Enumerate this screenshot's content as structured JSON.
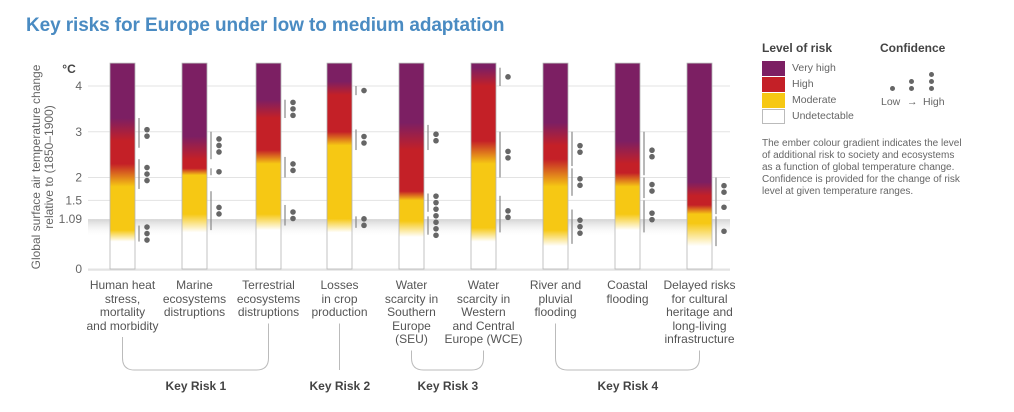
{
  "title": "Key risks for Europe under low to medium adaptation",
  "legend": {
    "level_title": "Level of risk",
    "levels": [
      {
        "label": "Very high",
        "color": "#7c1f63"
      },
      {
        "label": "High",
        "color": "#c42027"
      },
      {
        "label": "Moderate",
        "color": "#f6c814"
      },
      {
        "label": "Undetectable",
        "color": "#ffffff"
      }
    ],
    "confidence_title": "Confidence",
    "confidence_low": "Low",
    "confidence_arrow": "→",
    "confidence_high": "High",
    "description": "The ember colour gradient indicates the level of additional risk to society and ecosystems as a function of global temperature change. Confidence is provided for the change of risk level at given temperature ranges."
  },
  "chart_data": {
    "type": "ember",
    "title": "Key risks for Europe under low to medium adaptation",
    "ylabel": "Global surface air temperature change relative to (1850–1900)",
    "yunit": "°C",
    "ylim": [
      0,
      4.5
    ],
    "yticks": [
      0,
      1.09,
      1.5,
      2,
      3,
      4
    ],
    "ytick_labels": [
      "0",
      "1.09",
      "1.5",
      "2",
      "3",
      "4"
    ],
    "current_warming_band": [
      0.7,
      1.09
    ],
    "grid": true,
    "colors": {
      "undetectable": "#ffffff",
      "moderate": "#f6c814",
      "high": "#c42027",
      "very_high": "#7c1f63"
    },
    "embers": [
      {
        "name": "Human heat stress, mortality and morbidity",
        "transitions": {
          "undetectable_to_moderate": [
            0.6,
            0.85
          ],
          "moderate_to_high": [
            1.8,
            2.3
          ],
          "high_to_very_high": [
            2.8,
            3.3
          ]
        },
        "confidence": [
          {
            "range": [
              0.6,
              0.95
            ],
            "level": 3
          },
          {
            "range": [
              1.75,
              2.4
            ],
            "level": 3
          },
          {
            "range": [
              2.65,
              3.3
            ],
            "level": 2
          }
        ]
      },
      {
        "name": "Marine ecosystems distruptions",
        "transitions": {
          "undetectable_to_moderate": [
            0.8,
            1.2
          ],
          "moderate_to_high": [
            2.05,
            2.2
          ],
          "high_to_very_high": [
            2.4,
            2.9
          ]
        },
        "confidence": [
          {
            "range": [
              0.85,
              1.7
            ],
            "level": 2
          },
          {
            "range": [
              2.05,
              2.2
            ],
            "level": 1
          },
          {
            "range": [
              2.4,
              3.0
            ],
            "level": 3
          }
        ]
      },
      {
        "name": "Terrestrial ecosystems distruptions",
        "transitions": {
          "undetectable_to_moderate": [
            0.85,
            1.2
          ],
          "moderate_to_high": [
            2.3,
            2.6
          ],
          "high_to_very_high": [
            3.3,
            3.7
          ]
        },
        "confidence": [
          {
            "range": [
              0.95,
              1.4
            ],
            "level": 2
          },
          {
            "range": [
              2.0,
              2.45
            ],
            "level": 2
          },
          {
            "range": [
              3.3,
              3.7
            ],
            "level": 3
          }
        ]
      },
      {
        "name": "Losses in crop production",
        "transitions": {
          "undetectable_to_moderate": [
            0.8,
            1.1
          ],
          "moderate_to_high": [
            2.7,
            3.0
          ],
          "high_to_very_high": [
            3.8,
            4.1
          ]
        },
        "confidence": [
          {
            "range": [
              0.9,
              1.15
            ],
            "level": 2
          },
          {
            "range": [
              2.6,
              3.05
            ],
            "level": 2
          },
          {
            "range": [
              3.8,
              4.0
            ],
            "level": 1
          }
        ]
      },
      {
        "name": "Water scarcity in Southern Europe (SEU)",
        "transitions": {
          "undetectable_to_moderate": [
            0.7,
            1.05
          ],
          "moderate_to_high": [
            1.5,
            1.7
          ],
          "high_to_very_high": [
            2.6,
            3.2
          ]
        },
        "confidence": [
          {
            "range": [
              0.75,
              1.15
            ],
            "level": 4
          },
          {
            "range": [
              1.25,
              1.65
            ],
            "level": 3
          },
          {
            "range": [
              2.6,
              3.15
            ],
            "level": 2
          }
        ]
      },
      {
        "name": "Water scarcity in Western and Central Europe (WCE)",
        "transitions": {
          "undetectable_to_moderate": [
            0.6,
            0.9
          ],
          "moderate_to_high": [
            2.3,
            2.8
          ],
          "high_to_very_high": [
            4.0,
            4.4
          ]
        },
        "confidence": [
          {
            "range": [
              0.8,
              1.6
            ],
            "level": 2
          },
          {
            "range": [
              2.0,
              3.0
            ],
            "level": 2
          },
          {
            "range": [
              4.0,
              4.4
            ],
            "level": 1
          }
        ]
      },
      {
        "name": "River and pluvial flooding",
        "transitions": {
          "undetectable_to_moderate": [
            0.5,
            0.85
          ],
          "moderate_to_high": [
            1.8,
            2.4
          ],
          "high_to_very_high": [
            2.7,
            3.2
          ]
        },
        "confidence": [
          {
            "range": [
              0.55,
              1.3
            ],
            "level": 3
          },
          {
            "range": [
              1.6,
              2.2
            ],
            "level": 2
          },
          {
            "range": [
              2.25,
              3.0
            ],
            "level": 2
          }
        ]
      },
      {
        "name": "Coastal flooding",
        "transitions": {
          "undetectable_to_moderate": [
            0.85,
            1.2
          ],
          "moderate_to_high": [
            1.8,
            2.1
          ],
          "high_to_very_high": [
            2.3,
            2.8
          ]
        },
        "confidence": [
          {
            "range": [
              0.8,
              1.5
            ],
            "level": 2
          },
          {
            "range": [
              1.55,
              2.0
            ],
            "level": 2
          },
          {
            "range": [
              2.05,
              3.0
            ],
            "level": 2
          }
        ]
      },
      {
        "name": "Delayed risks for cultural heritage and long-living infrastructure",
        "transitions": {
          "undetectable_to_moderate": [
            0.5,
            1.0
          ],
          "moderate_to_high": [
            1.2,
            1.4
          ],
          "high_to_very_high": [
            1.6,
            1.9
          ]
        },
        "confidence": [
          {
            "range": [
              0.5,
              1.15
            ],
            "level": 1
          },
          {
            "range": [
              1.2,
              1.5
            ],
            "level": 1
          },
          {
            "range": [
              1.5,
              2.0
            ],
            "level": 2
          }
        ]
      }
    ],
    "key_risk_groups": [
      {
        "label": "Key Risk 1",
        "members": [
          0,
          1,
          2
        ]
      },
      {
        "label": "Key Risk 2",
        "members": [
          3
        ]
      },
      {
        "label": "Key Risk 3",
        "members": [
          4,
          5
        ]
      },
      {
        "label": "Key Risk 4",
        "members": [
          6,
          7,
          8
        ]
      }
    ]
  },
  "categories": [
    {
      "lines": [
        "Human heat",
        "stress,",
        "mortality",
        "and morbidity"
      ]
    },
    {
      "lines": [
        "Marine",
        "ecosystems",
        "distruptions"
      ]
    },
    {
      "lines": [
        "Terrestrial",
        "ecosystems",
        "distruptions"
      ]
    },
    {
      "lines": [
        "Losses",
        "in crop",
        "production"
      ]
    },
    {
      "lines": [
        "Water",
        "scarcity in",
        "Southern",
        "Europe",
        "(SEU)"
      ]
    },
    {
      "lines": [
        "Water",
        "scarcity in",
        "Western",
        "and Central",
        "Europe (WCE)"
      ]
    },
    {
      "lines": [
        "River and",
        "pluvial",
        "flooding"
      ]
    },
    {
      "lines": [
        "Coastal",
        "flooding"
      ]
    },
    {
      "lines": [
        "Delayed risks",
        "for cultural",
        "heritage and",
        "long-living",
        "infrastructure"
      ]
    }
  ]
}
